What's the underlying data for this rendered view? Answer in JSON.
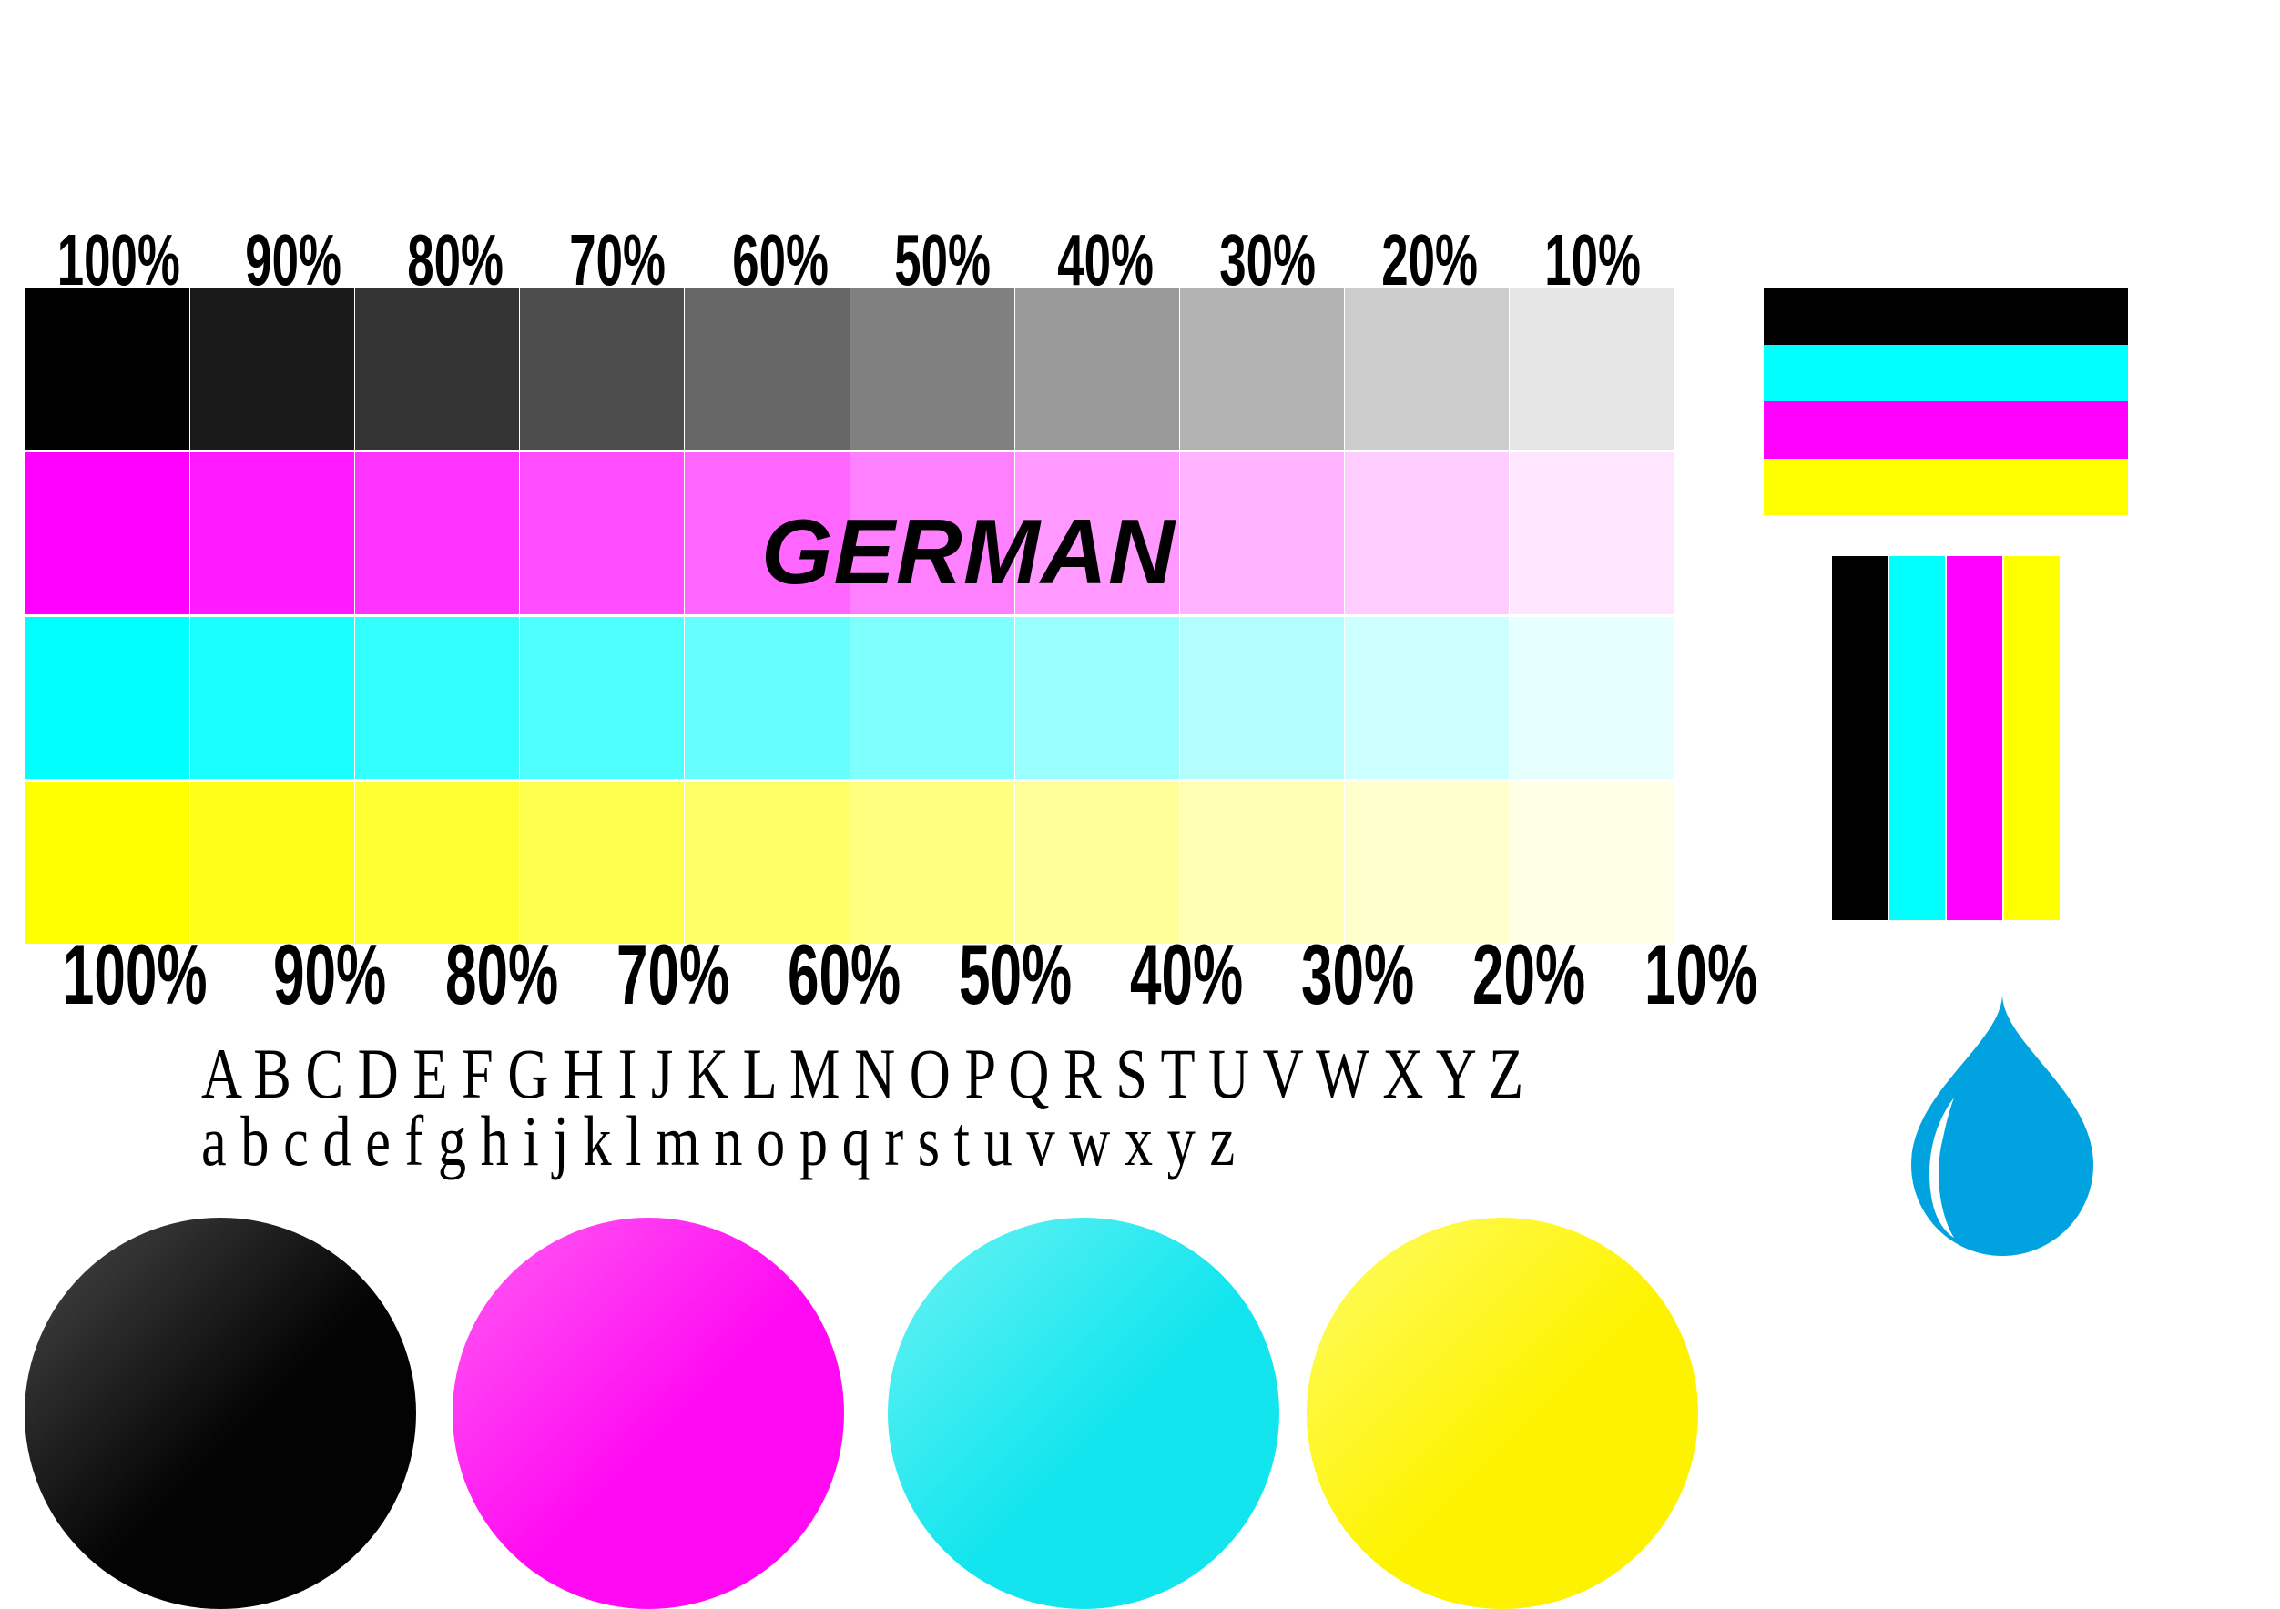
{
  "title": "GERMAN",
  "tint_chart": {
    "percent_labels": [
      "100%",
      "90%",
      "80%",
      "70%",
      "60%",
      "50%",
      "40%",
      "30%",
      "20%",
      "10%"
    ],
    "percentages": [
      100,
      90,
      80,
      70,
      60,
      50,
      40,
      30,
      20,
      10
    ],
    "rows": [
      {
        "name": "black",
        "rgb_full": [
          0,
          0,
          0
        ],
        "hex_full": "#000000"
      },
      {
        "name": "magenta",
        "rgb_full": [
          255,
          0,
          255
        ],
        "hex_full": "#ff00ff"
      },
      {
        "name": "cyan",
        "rgb_full": [
          0,
          255,
          255
        ],
        "hex_full": "#00ffff"
      },
      {
        "name": "yellow",
        "rgb_full": [
          255,
          255,
          0
        ],
        "hex_full": "#ffff00"
      }
    ]
  },
  "alphabet": {
    "uppercase": "A B C D E F G H I J K L M N O P Q R S T U V W X Y Z",
    "lowercase": "a b c d e f g h i j k l m n o p q r s t u v w x y z"
  },
  "cmyk_flag": {
    "stripe_names": [
      "black",
      "cyan",
      "magenta",
      "yellow"
    ],
    "stripe_colors": [
      "#000000",
      "#00ffff",
      "#ff00ff",
      "#ffff00"
    ]
  },
  "vertical_bars": {
    "bar_names": [
      "black",
      "cyan",
      "magenta",
      "yellow"
    ],
    "bar_colors": [
      "#000000",
      "#00ffff",
      "#ff00ff",
      "#ffff00"
    ]
  },
  "ink_drop": {
    "color": "#00a3e0"
  },
  "ink_circles": [
    {
      "name": "black",
      "color": "#030303",
      "highlight": "#4a4a4a"
    },
    {
      "name": "magenta",
      "color": "#ff0af2",
      "highlight": "#ff5ef2"
    },
    {
      "name": "cyan",
      "color": "#12e5ee",
      "highlight": "#6bf3f3"
    },
    {
      "name": "yellow",
      "color": "#fdf300",
      "highlight": "#fffc66"
    }
  ]
}
